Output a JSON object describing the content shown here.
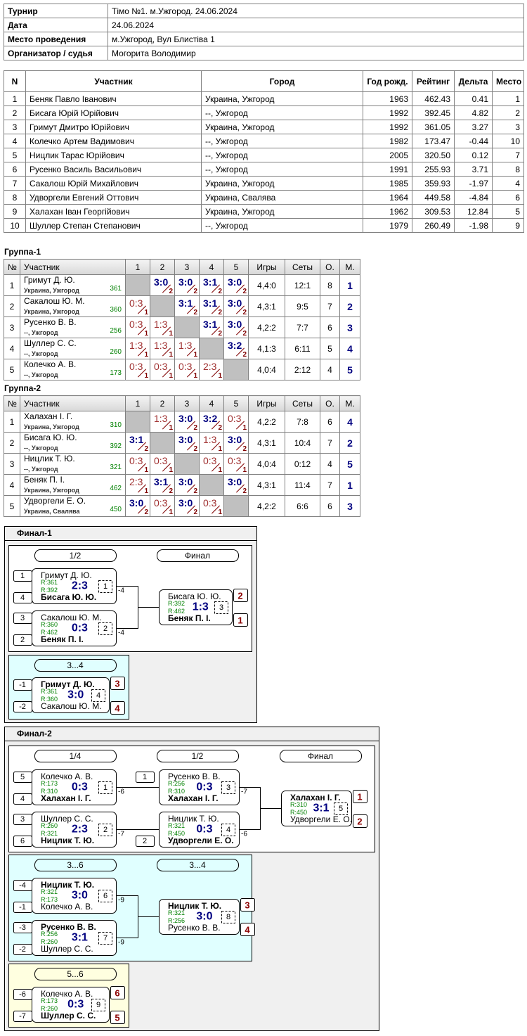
{
  "info": {
    "rows": [
      [
        "Турнир",
        "Тімо №1. м.Ужгород. 24.06.2024"
      ],
      [
        "Дата",
        "24.06.2024"
      ],
      [
        "Место проведения",
        "м.Ужгород, Вул Блистіва 1"
      ],
      [
        "Организатор / судья",
        "Могорита Володимир"
      ]
    ]
  },
  "participants": {
    "headers": [
      "N",
      "Участник",
      "Город",
      "Год рожд.",
      "Рейтинг",
      "Дельта",
      "Место"
    ],
    "rows": [
      [
        "1",
        "Беняк Павло Іванович",
        "Украина, Ужгород",
        "1963",
        "462.43",
        "0.41",
        "1"
      ],
      [
        "2",
        "Бисага Юрій Юрійович",
        "--, Ужгород",
        "1992",
        "392.45",
        "4.82",
        "2"
      ],
      [
        "3",
        "Гримут Дмитро Юрійович",
        "Украина, Ужгород",
        "1992",
        "361.05",
        "3.27",
        "3"
      ],
      [
        "4",
        "Колечко Артем Вадимович",
        "--, Ужгород",
        "1982",
        "173.47",
        "-0.44",
        "10"
      ],
      [
        "5",
        "Ницлик Тарас Юрійович",
        "--, Ужгород",
        "2005",
        "320.50",
        "0.12",
        "7"
      ],
      [
        "6",
        "Русенко Василь Васильович",
        "--, Ужгород",
        "1991",
        "255.93",
        "3.71",
        "8"
      ],
      [
        "7",
        "Сакалош Юрій Михайлович",
        "Украина, Ужгород",
        "1985",
        "359.93",
        "-1.97",
        "4"
      ],
      [
        "8",
        "Удворгели Евгений Оттович",
        "Украина, Свалява",
        "1964",
        "449.58",
        "-4.84",
        "6"
      ],
      [
        "9",
        "Халахан Іван Георгійович",
        "Украина, Ужгород",
        "1962",
        "309.53",
        "12.84",
        "5"
      ],
      [
        "10",
        "Шуллер Степан Степанович",
        "--, Ужгород",
        "1979",
        "260.49",
        "-1.98",
        "9"
      ]
    ]
  },
  "groups": [
    {
      "title": "Группа-1",
      "headers": [
        "№",
        "Участник",
        "1",
        "2",
        "3",
        "4",
        "5",
        "Игры",
        "Сеты",
        "О.",
        "М."
      ],
      "rows": [
        {
          "num": "1",
          "name": "Гримут Д. Ю.",
          "city": "Украина, Ужгород",
          "rating": "361",
          "cells": [
            null,
            {
              "score": "3:0",
              "pts": "2"
            },
            {
              "score": "3:0",
              "pts": "2"
            },
            {
              "score": "3:1",
              "pts": "2"
            },
            {
              "score": "3:0",
              "pts": "2"
            }
          ],
          "games": "4,4:0",
          "sets": "12:1",
          "points": "8",
          "place": "1"
        },
        {
          "num": "2",
          "name": "Сакалош Ю. М.",
          "city": "Украина, Ужгород",
          "rating": "360",
          "cells": [
            {
              "score": "0:3",
              "pts": "1"
            },
            null,
            {
              "score": "3:1",
              "pts": "2"
            },
            {
              "score": "3:1",
              "pts": "2"
            },
            {
              "score": "3:0",
              "pts": "2"
            }
          ],
          "games": "4,3:1",
          "sets": "9:5",
          "points": "7",
          "place": "2"
        },
        {
          "num": "3",
          "name": "Русенко В. В.",
          "city": "--, Ужгород",
          "rating": "256",
          "cells": [
            {
              "score": "0:3",
              "pts": "1"
            },
            {
              "score": "1:3",
              "pts": "1"
            },
            null,
            {
              "score": "3:1",
              "pts": "2"
            },
            {
              "score": "3:0",
              "pts": "2"
            }
          ],
          "games": "4,2:2",
          "sets": "7:7",
          "points": "6",
          "place": "3"
        },
        {
          "num": "4",
          "name": "Шуллер С. С.",
          "city": "--, Ужгород",
          "rating": "260",
          "cells": [
            {
              "score": "1:3",
              "pts": "1"
            },
            {
              "score": "1:3",
              "pts": "1"
            },
            {
              "score": "1:3",
              "pts": "1"
            },
            null,
            {
              "score": "3:2",
              "pts": "2"
            }
          ],
          "games": "4,1:3",
          "sets": "6:11",
          "points": "5",
          "place": "4"
        },
        {
          "num": "5",
          "name": "Колечко А. В.",
          "city": "--, Ужгород",
          "rating": "173",
          "cells": [
            {
              "score": "0:3",
              "pts": "1"
            },
            {
              "score": "0:3",
              "pts": "1"
            },
            {
              "score": "0:3",
              "pts": "1"
            },
            {
              "score": "2:3",
              "pts": "1"
            },
            null
          ],
          "games": "4,0:4",
          "sets": "2:12",
          "points": "4",
          "place": "5"
        }
      ]
    },
    {
      "title": "Группа-2",
      "headers": [
        "№",
        "Участник",
        "1",
        "2",
        "3",
        "4",
        "5",
        "Игры",
        "Сеты",
        "О.",
        "М."
      ],
      "rows": [
        {
          "num": "1",
          "name": "Халахан І. Г.",
          "city": "Украина, Ужгород",
          "rating": "310",
          "cells": [
            null,
            {
              "score": "1:3",
              "pts": "1"
            },
            {
              "score": "3:0",
              "pts": "2"
            },
            {
              "score": "3:2",
              "pts": "2"
            },
            {
              "score": "0:3",
              "pts": "1"
            }
          ],
          "games": "4,2:2",
          "sets": "7:8",
          "points": "6",
          "place": "4"
        },
        {
          "num": "2",
          "name": "Бисага Ю. Ю.",
          "city": "--, Ужгород",
          "rating": "392",
          "cells": [
            {
              "score": "3:1",
              "pts": "2"
            },
            null,
            {
              "score": "3:0",
              "pts": "2"
            },
            {
              "score": "1:3",
              "pts": "1"
            },
            {
              "score": "3:0",
              "pts": "2"
            }
          ],
          "games": "4,3:1",
          "sets": "10:4",
          "points": "7",
          "place": "2"
        },
        {
          "num": "3",
          "name": "Ницлик Т. Ю.",
          "city": "--, Ужгород",
          "rating": "321",
          "cells": [
            {
              "score": "0:3",
              "pts": "1"
            },
            {
              "score": "0:3",
              "pts": "1"
            },
            null,
            {
              "score": "0:3",
              "pts": "1"
            },
            {
              "score": "0:3",
              "pts": "1"
            }
          ],
          "games": "4,0:4",
          "sets": "0:12",
          "points": "4",
          "place": "5"
        },
        {
          "num": "4",
          "name": "Беняк П. І.",
          "city": "Украина, Ужгород",
          "rating": "462",
          "cells": [
            {
              "score": "2:3",
              "pts": "1"
            },
            {
              "score": "3:1",
              "pts": "2"
            },
            {
              "score": "3:0",
              "pts": "2"
            },
            null,
            {
              "score": "3:0",
              "pts": "2"
            }
          ],
          "games": "4,3:1",
          "sets": "11:4",
          "points": "7",
          "place": "1"
        },
        {
          "num": "5",
          "name": "Удворгели Е. О.",
          "city": "Украина, Свалява",
          "rating": "450",
          "cells": [
            {
              "score": "3:0",
              "pts": "2"
            },
            {
              "score": "0:3",
              "pts": "1"
            },
            {
              "score": "3:0",
              "pts": "2"
            },
            {
              "score": "0:3",
              "pts": "1"
            },
            null
          ],
          "games": "4,2:2",
          "sets": "6:6",
          "points": "6",
          "place": "3"
        }
      ]
    }
  ],
  "finals": [
    {
      "title": "Финал-1",
      "blocks": [
        {
          "background": "#ffffff",
          "headers": [
            "1/2",
            "Финал"
          ],
          "matches": [
            {
              "number": "1",
              "score": "2:3",
              "label": "-4",
              "players": [
                {
                  "seed": "1",
                  "name": "Гримут Д. Ю.",
                  "rating": "R:361"
                },
                {
                  "seed": "4",
                  "name": "Бисага Ю. Ю.",
                  "rating": "R:392",
                  "bold": true
                }
              ]
            },
            {
              "number": "2",
              "score": "0:3",
              "label": "-4",
              "players": [
                {
                  "seed": "3",
                  "name": "Сакалош Ю. М.",
                  "rating": "R:360"
                },
                {
                  "seed": "2",
                  "name": "Беняк П. І.",
                  "rating": "R:462",
                  "bold": true
                }
              ]
            },
            {
              "number": "3",
              "score": "1:3",
              "players": [
                {
                  "place": "2",
                  "name": "Бисага Ю. Ю.",
                  "rating": "R:392"
                },
                {
                  "place": "1",
                  "name": "Беняк П. І.",
                  "rating": "R:462",
                  "bold": true
                }
              ]
            }
          ]
        },
        {
          "background": "#e0ffff",
          "headers": [
            "3...4"
          ],
          "matches": [
            {
              "number": "4",
              "score": "3:0",
              "players": [
                {
                  "seed": "-1",
                  "place": "3",
                  "name": "Гримут Д. Ю.",
                  "rating": "R:361",
                  "bold": true
                },
                {
                  "seed": "-2",
                  "place": "4",
                  "name": "Сакалош Ю. М.",
                  "rating": "R:360"
                }
              ]
            }
          ]
        }
      ]
    },
    {
      "title": "Финал-2",
      "blocks": [
        {
          "background": "#ffffff",
          "headers": [
            "1/4",
            "1/2",
            "Финал"
          ],
          "matches": [
            {
              "number": "1",
              "score": "0:3",
              "label": "-6",
              "players": [
                {
                  "seed": "5",
                  "name": "Колечко А. В.",
                  "rating": "R:173"
                },
                {
                  "seed": "4",
                  "name": "Халахан І. Г.",
                  "rating": "R:310",
                  "bold": true
                }
              ]
            },
            {
              "number": "2",
              "score": "2:3",
              "label": "-7",
              "players": [
                {
                  "seed": "3",
                  "name": "Шуллер С. С.",
                  "rating": "R:260"
                },
                {
                  "seed": "6",
                  "name": "Ницлик Т. Ю.",
                  "rating": "R:321",
                  "bold": true
                }
              ]
            },
            {
              "number": "3",
              "score": "0:3",
              "label": "-7",
              "players": [
                {
                  "seed": "1",
                  "name": "Русенко В. В.",
                  "rating": "R:256"
                },
                {
                  "name": "Халахан І. Г.",
                  "rating": "R:310",
                  "bold": true
                }
              ]
            },
            {
              "number": "4",
              "score": "0:3",
              "label": "-6",
              "players": [
                {
                  "name": "Ницлик Т. Ю.",
                  "rating": "R:321"
                },
                {
                  "seed": "2",
                  "name": "Удворгели Е. О.",
                  "rating": "R:450",
                  "bold": true
                }
              ]
            },
            {
              "number": "5",
              "score": "3:1",
              "players": [
                {
                  "place": "1",
                  "name": "Халахан І. Г.",
                  "rating": "R:310",
                  "bold": true
                },
                {
                  "place": "2",
                  "name": "Удворгели Е. О.",
                  "rating": "R:450"
                }
              ]
            }
          ]
        },
        {
          "background": "#e0ffff",
          "headers": [
            "3...6",
            "3...4"
          ],
          "matches": [
            {
              "number": "6",
              "score": "3:0",
              "label": "-9",
              "players": [
                {
                  "seed": "-4",
                  "name": "Ницлик Т. Ю.",
                  "rating": "R:321",
                  "bold": true
                },
                {
                  "seed": "-1",
                  "name": "Колечко А. В.",
                  "rating": "R:173"
                }
              ]
            },
            {
              "number": "7",
              "score": "3:1",
              "label": "-9",
              "players": [
                {
                  "seed": "-3",
                  "name": "Русенко В. В.",
                  "rating": "R:256",
                  "bold": true
                },
                {
                  "seed": "-2",
                  "name": "Шуллер С. С.",
                  "rating": "R:260"
                }
              ]
            },
            {
              "number": "8",
              "score": "3:0",
              "players": [
                {
                  "place": "3",
                  "name": "Ницлик Т. Ю.",
                  "rating": "R:321",
                  "bold": true
                },
                {
                  "place": "4",
                  "name": "Русенко В. В.",
                  "rating": "R:256"
                }
              ]
            }
          ]
        },
        {
          "background": "#ffffe0",
          "headers": [
            "5...6"
          ],
          "matches": [
            {
              "number": "9",
              "score": "0:3",
              "players": [
                {
                  "seed": "-6",
                  "place": "6",
                  "name": "Колечко А. В.",
                  "rating": "R:173"
                },
                {
                  "seed": "-7",
                  "place": "5",
                  "name": "Шуллер С. С.",
                  "rating": "R:260",
                  "bold": true
                }
              ]
            }
          ]
        }
      ]
    }
  ]
}
